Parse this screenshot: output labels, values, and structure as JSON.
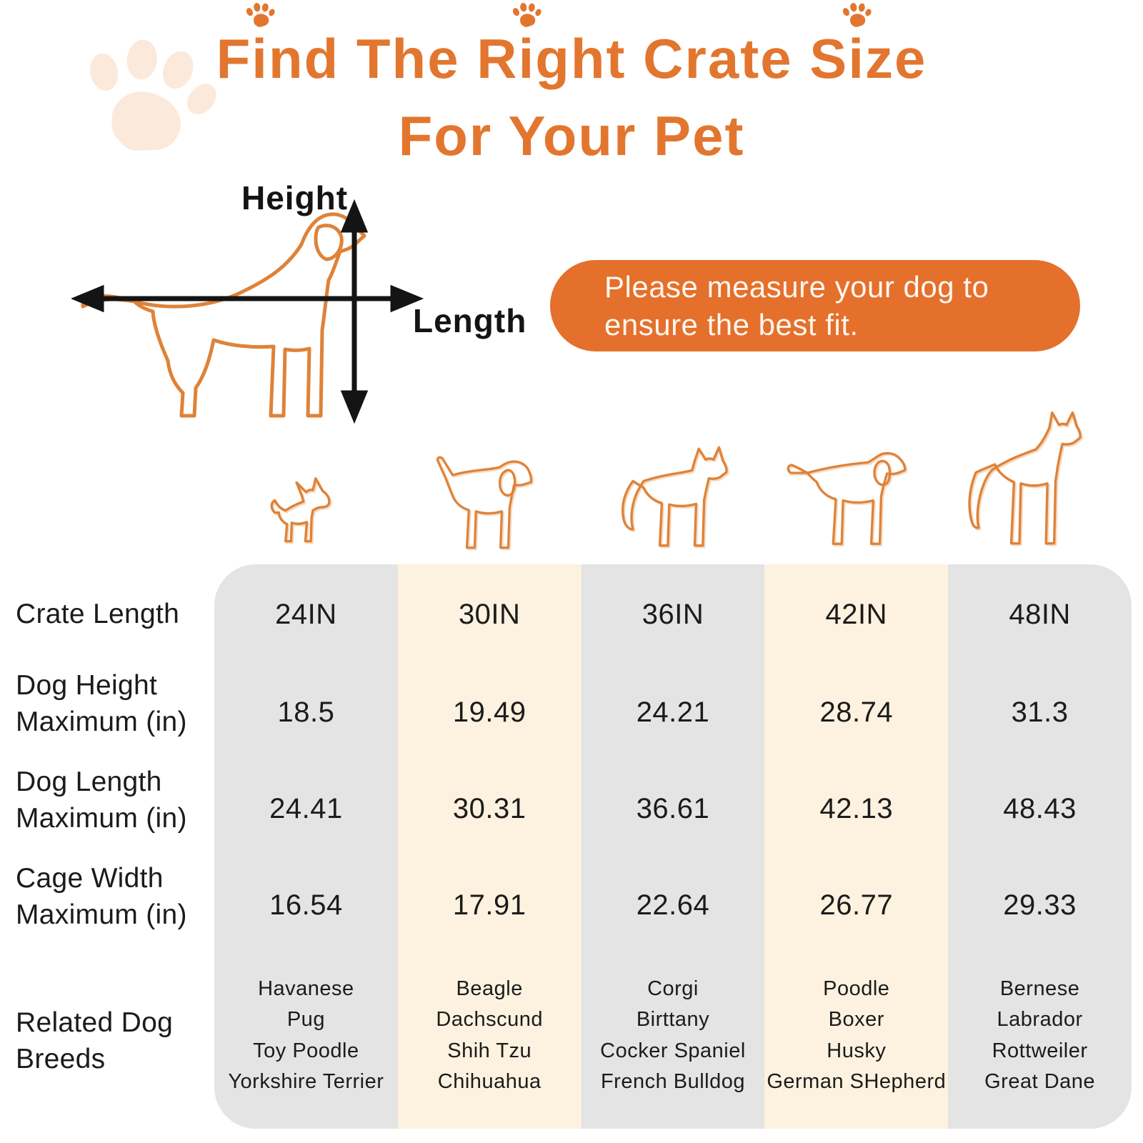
{
  "colors": {
    "accent_orange": "#E3762F",
    "pill_orange": "#E4702C",
    "dog_outline_orange": "#DF8238",
    "paw_light": "#FBE9DB",
    "column_gray": "#E4E4E5",
    "column_cream": "#FCF2DF",
    "text_dark": "#161616",
    "note_text": "#FDF6EF",
    "arrow_black": "#141414"
  },
  "title": {
    "line1": "Find The Right Crate Size",
    "line2": "For Your Pet"
  },
  "diagram": {
    "height_label": "Height",
    "length_label": "Length"
  },
  "note": {
    "line1": "Please measure your dog to",
    "line2": "ensure the best fit."
  },
  "dog_icons": [
    "chihuahua",
    "beagle",
    "husky",
    "labrador",
    "great-dane"
  ],
  "table": {
    "row_labels": [
      [
        "Crate Length"
      ],
      [
        "Dog Height",
        "Maximum (in)"
      ],
      [
        "Dog Length",
        "Maximum (in)"
      ],
      [
        "Cage Width",
        "Maximum (in)"
      ],
      [
        "Related Dog",
        "Breeds"
      ]
    ],
    "columns": [
      {
        "crate_length": "24IN",
        "dog_height_max": "18.5",
        "dog_length_max": "24.41",
        "cage_width_max": "16.54",
        "breeds": [
          "Havanese",
          "Pug",
          "Toy Poodle",
          "Yorkshire Terrier"
        ]
      },
      {
        "crate_length": "30IN",
        "dog_height_max": "19.49",
        "dog_length_max": "30.31",
        "cage_width_max": "17.91",
        "breeds": [
          "Beagle",
          "Dachscund",
          "Shih Tzu",
          "Chihuahua"
        ]
      },
      {
        "crate_length": "36IN",
        "dog_height_max": "24.21",
        "dog_length_max": "36.61",
        "cage_width_max": "22.64",
        "breeds": [
          "Corgi",
          "Birttany",
          "Cocker Spaniel",
          "French Bulldog"
        ]
      },
      {
        "crate_length": "42IN",
        "dog_height_max": "28.74",
        "dog_length_max": "42.13",
        "cage_width_max": "26.77",
        "breeds": [
          "Poodle",
          "Boxer",
          "Husky",
          "German SHepherd"
        ]
      },
      {
        "crate_length": "48IN",
        "dog_height_max": "31.3",
        "dog_length_max": "48.43",
        "cage_width_max": "29.33",
        "breeds": [
          "Bernese",
          "Labrador",
          "Rottweiler",
          "Great Dane"
        ]
      }
    ]
  },
  "chart_data": {
    "type": "table",
    "title": "Find The Right Crate Size For Your Pet",
    "note": "Please measure your dog to ensure the best fit.",
    "columns": [
      "24IN",
      "30IN",
      "36IN",
      "42IN",
      "48IN"
    ],
    "rows": [
      {
        "label": "Crate Length",
        "values": [
          "24IN",
          "30IN",
          "36IN",
          "42IN",
          "48IN"
        ]
      },
      {
        "label": "Dog Height Maximum (in)",
        "values": [
          18.5,
          19.49,
          24.21,
          28.74,
          31.3
        ]
      },
      {
        "label": "Dog Length Maximum (in)",
        "values": [
          24.41,
          30.31,
          36.61,
          42.13,
          48.43
        ]
      },
      {
        "label": "Cage Width Maximum (in)",
        "values": [
          16.54,
          17.91,
          22.64,
          26.77,
          29.33
        ]
      },
      {
        "label": "Related Dog Breeds",
        "values": [
          [
            "Havanese",
            "Pug",
            "Toy Poodle",
            "Yorkshire Terrier"
          ],
          [
            "Beagle",
            "Dachscund",
            "Shih Tzu",
            "Chihuahua"
          ],
          [
            "Corgi",
            "Birttany",
            "Cocker Spaniel",
            "French Bulldog"
          ],
          [
            "Poodle",
            "Boxer",
            "Husky",
            "German SHepherd"
          ],
          [
            "Bernese",
            "Labrador",
            "Rottweiler",
            "Great Dane"
          ]
        ]
      }
    ]
  }
}
